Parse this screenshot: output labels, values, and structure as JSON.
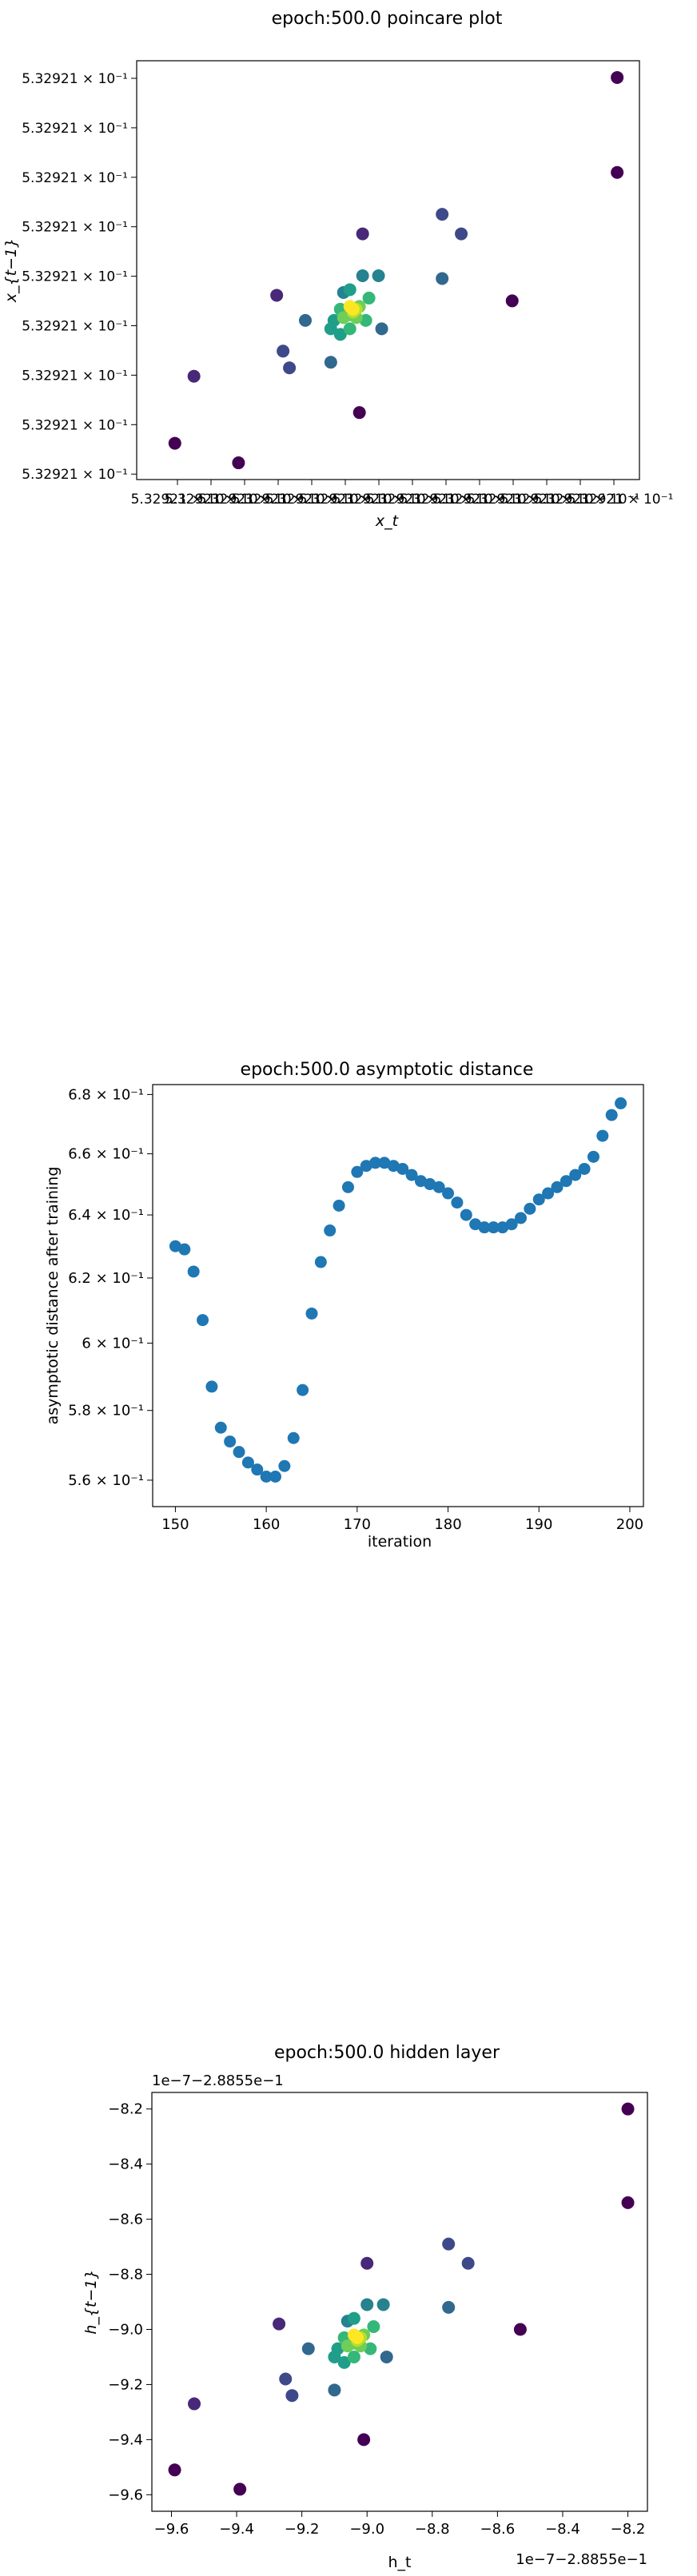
{
  "colors": {
    "viridis": [
      "#440154",
      "#482878",
      "#3e4989",
      "#31688e",
      "#26828e",
      "#1f9e89",
      "#35b779",
      "#6ece58",
      "#b5de2b",
      "#fde725"
    ],
    "series": "#1f77b4"
  },
  "chart_data": [
    {
      "type": "scatter",
      "title": "epoch:500.0 poincare plot",
      "xlabel": "x_t",
      "ylabel": "x_{t−1}",
      "ytick_label": "5.32921 × 10⁻¹",
      "ytick_count": 9,
      "xtick_labels": [
        "5.32921 × 10⁻¹",
        "5.32921 × 10⁻¹",
        "5.32921 × 10⁻¹",
        "5.32921 × 10⁻¹",
        "5.32921 × 10⁻¹",
        "5.32921 × 10⁻¹",
        "5.32921 × 10⁻¹",
        "5.32921 × 10⁻¹",
        "5.32921 × 10⁻¹",
        "5.32921 × 10⁻¹",
        "5.32921 × 10⁻¹",
        "5.32921 × 10⁻¹",
        "5.32921 × 10⁻¹",
        "5.32921 × 10⁻¹"
      ],
      "color_encoding": "density (viridis)",
      "grid": false
    },
    {
      "type": "scatter",
      "title": "epoch:500.0 asymptotic distance",
      "xlabel": "iteration",
      "ylabel": "asymptotic distance after training",
      "y_scale": "log",
      "xlim": [
        147.5,
        201.5
      ],
      "ylim": [
        0.5526,
        0.6834
      ],
      "xticks": [
        150,
        160,
        170,
        180,
        190,
        200
      ],
      "yticks": [
        {
          "value": 0.56,
          "label": "5.6 × 10⁻¹"
        },
        {
          "value": 0.58,
          "label": "5.8 × 10⁻¹"
        },
        {
          "value": 0.6,
          "label": "6 × 10⁻¹"
        },
        {
          "value": 0.62,
          "label": "6.2 × 10⁻¹"
        },
        {
          "value": 0.64,
          "label": "6.4 × 10⁻¹"
        },
        {
          "value": 0.66,
          "label": "6.6 × 10⁻¹"
        },
        {
          "value": 0.68,
          "label": "6.8 × 10⁻¹"
        }
      ],
      "x": [
        150,
        151,
        152,
        153,
        154,
        155,
        156,
        157,
        158,
        159,
        160,
        161,
        162,
        163,
        164,
        165,
        166,
        167,
        168,
        169,
        170,
        171,
        172,
        173,
        174,
        175,
        176,
        177,
        178,
        179,
        180,
        181,
        182,
        183,
        184,
        185,
        186,
        187,
        188,
        189,
        190,
        191,
        192,
        193,
        194,
        195,
        196,
        197,
        198,
        199
      ],
      "y": [
        0.63,
        0.629,
        0.622,
        0.607,
        0.587,
        0.575,
        0.571,
        0.568,
        0.565,
        0.563,
        0.561,
        0.561,
        0.564,
        0.572,
        0.586,
        0.609,
        0.625,
        0.635,
        0.643,
        0.649,
        0.654,
        0.656,
        0.657,
        0.657,
        0.656,
        0.655,
        0.653,
        0.651,
        0.65,
        0.649,
        0.647,
        0.644,
        0.64,
        0.637,
        0.636,
        0.636,
        0.636,
        0.637,
        0.639,
        0.642,
        0.645,
        0.647,
        0.649,
        0.651,
        0.653,
        0.655,
        0.659,
        0.666,
        0.673,
        0.677
      ],
      "grid": false
    },
    {
      "type": "scatter",
      "title": "epoch:500.0 hidden layer",
      "xlabel": "h_t",
      "ylabel": "h_{t−1}",
      "offset_label": "1e−7−2.8855e−1",
      "xlim": [
        -9.66,
        -8.14
      ],
      "ylim": [
        -9.66,
        -8.14
      ],
      "xticks": [
        -9.6,
        -9.4,
        -9.2,
        -9.0,
        -8.8,
        -8.6,
        -8.4,
        -8.2
      ],
      "yticks": [
        -9.6,
        -9.4,
        -9.2,
        -9.0,
        -8.8,
        -8.6,
        -8.4,
        -8.2
      ],
      "tick_labels": {
        "-9.6": "−9.6",
        "-9.4": "−9.4",
        "-9.2": "−9.2",
        "-9.0": "−9.0",
        "-8.8": "−8.8",
        "-8.6": "−8.6",
        "-8.4": "−8.4",
        "-8.2": "−8.2"
      },
      "points": [
        [
          -8.2,
          -8.2,
          0
        ],
        [
          -8.2,
          -8.54,
          0
        ],
        [
          -9.59,
          -9.51,
          0
        ],
        [
          -9.39,
          -9.58,
          0
        ],
        [
          -9.01,
          -9.4,
          0
        ],
        [
          -8.53,
          -9.0,
          0
        ],
        [
          -9.53,
          -9.27,
          1
        ],
        [
          -9.27,
          -8.98,
          1
        ],
        [
          -9.0,
          -8.76,
          1
        ],
        [
          -9.23,
          -9.24,
          2
        ],
        [
          -9.25,
          -9.18,
          2
        ],
        [
          -8.75,
          -8.69,
          2
        ],
        [
          -8.69,
          -8.76,
          2
        ],
        [
          -8.75,
          -8.92,
          3
        ],
        [
          -9.1,
          -9.22,
          3
        ],
        [
          -9.18,
          -9.07,
          3
        ],
        [
          -8.94,
          -9.1,
          3
        ],
        [
          -9.0,
          -8.91,
          4
        ],
        [
          -9.06,
          -8.97,
          4
        ],
        [
          -8.95,
          -8.91,
          4
        ],
        [
          -9.09,
          -9.07,
          5
        ],
        [
          -9.04,
          -8.96,
          5
        ],
        [
          -9.1,
          -9.1,
          5
        ],
        [
          -9.07,
          -9.12,
          5
        ],
        [
          -9.04,
          -9.1,
          6
        ],
        [
          -8.98,
          -8.99,
          6
        ],
        [
          -9.07,
          -9.03,
          6
        ],
        [
          -8.99,
          -9.07,
          6
        ],
        [
          -9.04,
          -9.05,
          7
        ],
        [
          -9.01,
          -9.02,
          7
        ],
        [
          -9.06,
          -9.06,
          7
        ],
        [
          -9.02,
          -9.06,
          7
        ],
        [
          -9.03,
          -9.04,
          8
        ],
        [
          -9.02,
          -9.03,
          8
        ],
        [
          -9.04,
          -9.02,
          9
        ],
        [
          -9.03,
          -9.03,
          9
        ]
      ],
      "color_encoding": "density (viridis)",
      "grid": false
    }
  ]
}
